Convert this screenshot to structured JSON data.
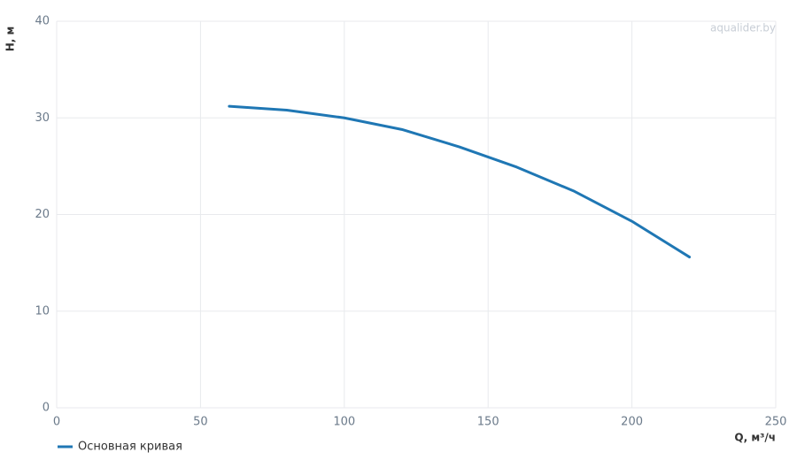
{
  "chart_data": {
    "type": "line",
    "watermark": "aqualider.by",
    "x_label": "Q, м³/ч",
    "y_label": "H, м",
    "x": [
      60,
      80,
      100,
      120,
      140,
      160,
      180,
      200,
      220
    ],
    "series": [
      {
        "name": "Основная кривая",
        "color": "#1f77b4",
        "values": [
          31.2,
          30.8,
          30.0,
          28.8,
          27.0,
          24.9,
          22.4,
          19.3,
          15.6
        ]
      }
    ],
    "xlim": [
      0,
      250
    ],
    "xticks": [
      0,
      50,
      100,
      150,
      200,
      250
    ],
    "ylim": [
      0,
      40
    ],
    "yticks": [
      0,
      10,
      20,
      30,
      40
    ],
    "grid": true
  }
}
